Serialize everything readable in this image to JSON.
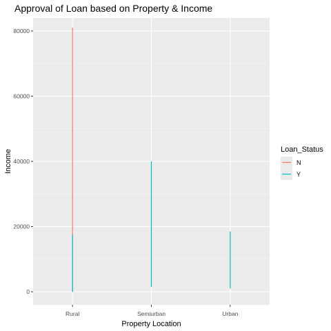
{
  "chart_data": {
    "type": "line",
    "title": "Approval of Loan based on Property & Income",
    "xlabel": "Property Location",
    "ylabel": "Income",
    "categories": [
      "Rural",
      "Semiurban",
      "Urban"
    ],
    "ylim": [
      -4000,
      84000
    ],
    "yticks": [
      0,
      20000,
      40000,
      60000,
      80000
    ],
    "grid": true,
    "legend": {
      "title": "Loan_Status",
      "position": "right"
    },
    "series": [
      {
        "name": "N",
        "color": "#F8766D",
        "ranges": [
          {
            "category": "Rural",
            "min": 0,
            "max": 81000
          }
        ]
      },
      {
        "name": "Y",
        "color": "#00BFC4",
        "ranges": [
          {
            "category": "Rural",
            "min": 0,
            "max": 17500
          },
          {
            "category": "Semiurban",
            "min": 1500,
            "max": 40000
          },
          {
            "category": "Urban",
            "min": 1000,
            "max": 18500
          }
        ]
      }
    ]
  }
}
